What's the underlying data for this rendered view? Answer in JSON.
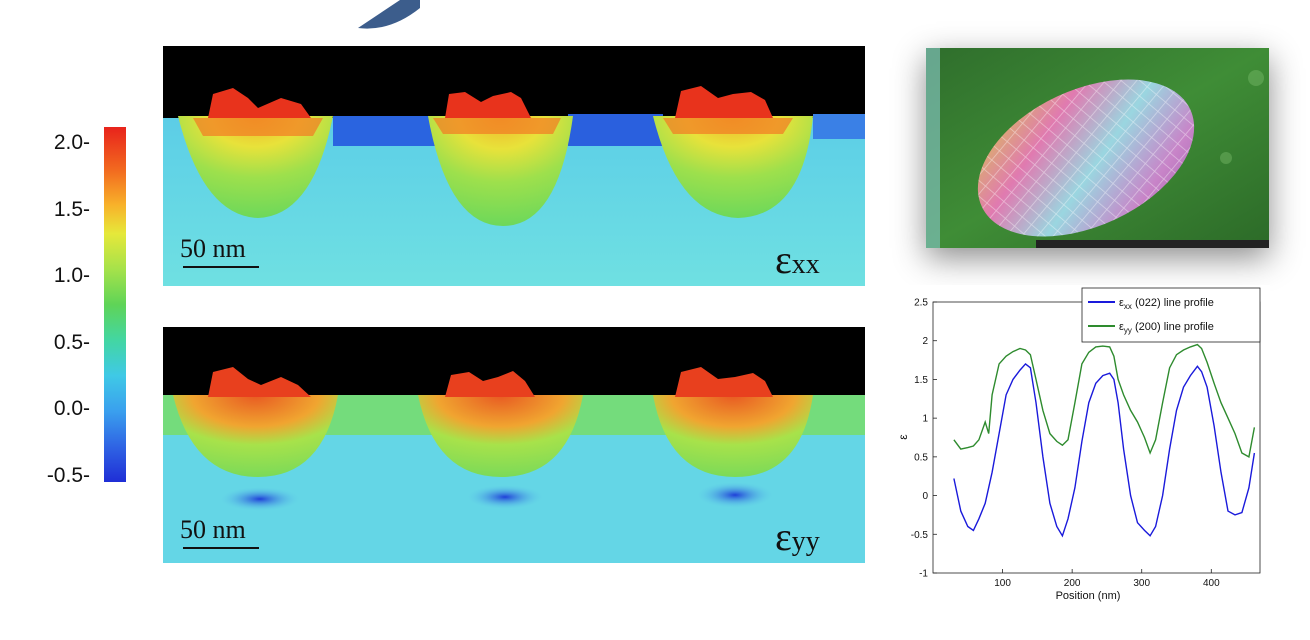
{
  "colorbar": {
    "ticks": [
      "2.0-",
      "1.5-",
      "1.0-",
      "0.5-",
      "0.0-",
      "-0.5-"
    ],
    "colors": [
      "#e8231c",
      "#f8b22a",
      "#5fd457",
      "#3fc9e6",
      "#1f2ed6"
    ]
  },
  "map_xx": {
    "scale_bar": "50 nm",
    "label_main": "ε",
    "label_sub": "xx"
  },
  "map_yy": {
    "scale_bar": "50 nm",
    "label_main": "ε",
    "label_sub": "yy"
  },
  "chart_data": {
    "type": "line",
    "xlabel": "Position (nm)",
    "ylabel": "ε",
    "xlim": [
      0,
      470
    ],
    "ylim": [
      -1,
      2.5
    ],
    "xticks": [
      100,
      200,
      300,
      400
    ],
    "yticks": [
      -1,
      -0.5,
      0,
      0.5,
      1,
      1.5,
      2,
      2.5
    ],
    "legend_position": "top-right",
    "series": [
      {
        "name": "εxx (022) line profile",
        "legend_main": "ε",
        "legend_sub": "xx",
        "legend_rest": " (022) line profile",
        "color": "#1a1adb",
        "x": [
          30,
          40,
          50,
          58,
          66,
          75,
          85,
          95,
          105,
          115,
          125,
          133,
          140,
          148,
          158,
          168,
          178,
          186,
          194,
          204,
          214,
          224,
          234,
          244,
          254,
          260,
          266,
          274,
          284,
          294,
          304,
          312,
          320,
          330,
          340,
          350,
          360,
          370,
          380,
          386,
          394,
          404,
          414,
          424,
          434,
          444,
          454,
          462
        ],
        "y": [
          0.22,
          -0.2,
          -0.4,
          -0.45,
          -0.3,
          -0.1,
          0.3,
          0.8,
          1.3,
          1.5,
          1.62,
          1.7,
          1.65,
          1.2,
          0.5,
          -0.1,
          -0.4,
          -0.52,
          -0.3,
          0.1,
          0.7,
          1.2,
          1.45,
          1.55,
          1.58,
          1.5,
          1.2,
          0.6,
          0.0,
          -0.35,
          -0.45,
          -0.52,
          -0.4,
          0.0,
          0.6,
          1.1,
          1.4,
          1.55,
          1.67,
          1.6,
          1.4,
          0.9,
          0.3,
          -0.2,
          -0.25,
          -0.22,
          0.1,
          0.55
        ]
      },
      {
        "name": "εyy (200) line profile",
        "legend_main": "ε",
        "legend_sub": "yy",
        "legend_rest": " (200) line profile",
        "color": "#2e8b2e",
        "x": [
          30,
          40,
          50,
          58,
          66,
          75,
          80,
          85,
          95,
          105,
          115,
          125,
          133,
          140,
          148,
          158,
          168,
          178,
          186,
          194,
          204,
          214,
          224,
          234,
          244,
          254,
          260,
          266,
          274,
          284,
          294,
          304,
          312,
          320,
          330,
          340,
          350,
          360,
          370,
          380,
          386,
          394,
          404,
          414,
          424,
          434,
          444,
          454,
          462
        ],
        "y": [
          0.72,
          0.6,
          0.62,
          0.64,
          0.72,
          0.95,
          0.8,
          1.3,
          1.7,
          1.8,
          1.86,
          1.9,
          1.88,
          1.82,
          1.5,
          1.1,
          0.8,
          0.7,
          0.65,
          0.72,
          1.2,
          1.7,
          1.85,
          1.92,
          1.93,
          1.92,
          1.8,
          1.5,
          1.3,
          1.1,
          0.95,
          0.75,
          0.55,
          0.72,
          1.2,
          1.65,
          1.82,
          1.88,
          1.92,
          1.95,
          1.9,
          1.72,
          1.45,
          1.2,
          1.0,
          0.8,
          0.55,
          0.5,
          0.88
        ]
      }
    ]
  }
}
